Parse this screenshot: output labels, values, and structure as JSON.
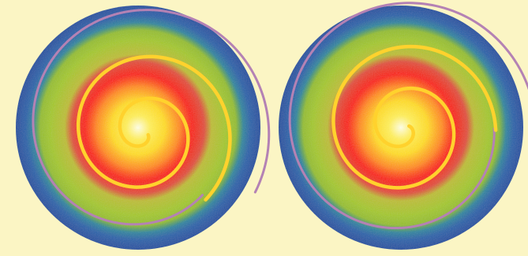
{
  "colors": {
    "background": "#fbf5c4",
    "center_glow": "#ffffe6",
    "inner_yellow": "#ffdc1e",
    "mid_orange": "#ff8c14",
    "red": "#fa1e0a",
    "green": "#a5c828",
    "outer_ring_blue": "#2864aa",
    "spiral_inner": "#ffd22d",
    "spiral_outer": "#b482b4"
  },
  "discs": [
    {
      "name": "left-disc",
      "spiral_direction": "clockwise"
    },
    {
      "name": "right-disc",
      "spiral_direction": "clockwise"
    }
  ]
}
